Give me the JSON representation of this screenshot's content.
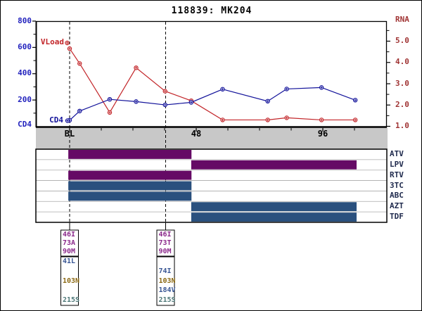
{
  "title": "118839: MK204",
  "colors": {
    "vload": "#C22428",
    "cd4": "#12129A",
    "cd4_axis_text": "#2323BE",
    "rna_axis_text": "#A03434",
    "x_axis_text": "#000000",
    "band": "#C8C8C8",
    "pi_bar": "#650A65",
    "nrti_bar": "#2A507E",
    "med_label": "#1F2A4D",
    "pi_mut": "#8B2A8B",
    "nrti_mut": "#3A5795",
    "nnrti_mut": "#8B6914",
    "other_mut": "#4E7878"
  },
  "chart_data": {
    "type": "line",
    "title": "118839: MK204",
    "x_unit": "weeks",
    "x_ticks_major": [
      {
        "week": 0,
        "label": "BL"
      },
      {
        "week": 48,
        "label": "48"
      },
      {
        "week": 96,
        "label": "96"
      }
    ],
    "x_minor_tick_weeks": [
      12,
      24,
      36,
      60,
      72,
      84,
      108
    ],
    "x_range_weeks": [
      -12.8,
      120.3
    ],
    "left_axis": {
      "label": "CD4",
      "range": [
        0,
        800
      ],
      "major_ticks": [
        200,
        400,
        600,
        800
      ],
      "minor_ticks": [
        100,
        300,
        500,
        700
      ]
    },
    "right_axis": {
      "label": "RNA",
      "range": [
        1.0,
        6.0
      ],
      "major_ticks": [
        1.0,
        2.0,
        3.0,
        4.0,
        5.0
      ],
      "minor_ticks": [
        1.5,
        2.5,
        3.5,
        4.5,
        5.5
      ]
    },
    "resistance_test_weeks": [
      0,
      36.4
    ],
    "series": [
      {
        "name": "VLoad",
        "axis": "right",
        "color_key": "vload",
        "weeks": [
          0,
          3.8,
          15.2,
          25.2,
          36.2,
          46.1,
          58,
          75.1,
          82.3,
          95.5,
          108.3
        ],
        "values": [
          4.65,
          3.95,
          1.65,
          3.75,
          2.65,
          2.2,
          1.3,
          1.3,
          1.4,
          1.3,
          1.3
        ]
      },
      {
        "name": "CD4",
        "axis": "left",
        "color_key": "cd4",
        "weeks": [
          0,
          3.8,
          15.2,
          25.2,
          36.2,
          46.1,
          58,
          75.1,
          82.3,
          95.5,
          108.3
        ],
        "values": [
          46,
          116,
          205,
          188,
          163,
          182,
          282,
          191,
          284,
          295,
          199
        ]
      }
    ]
  },
  "medications": {
    "rows": [
      {
        "name": "ATV",
        "type": "pi",
        "start_week": -0.5,
        "end_week": 46.2
      },
      {
        "name": "LPV",
        "type": "pi",
        "start_week": 46.1,
        "end_week": 108.8
      },
      {
        "name": "RTV",
        "type": "pi",
        "start_week": -0.5,
        "end_week": 46.2
      },
      {
        "name": "3TC",
        "type": "nrti",
        "start_week": -0.5,
        "end_week": 46.2
      },
      {
        "name": "ABC",
        "type": "nrti",
        "start_week": -0.5,
        "end_week": 46.2
      },
      {
        "name": "AZT",
        "type": "nrti",
        "start_week": 46.1,
        "end_week": 108.8
      },
      {
        "name": "TDF",
        "type": "nrti",
        "start_week": 46.1,
        "end_week": 108.8
      }
    ]
  },
  "mutation_tests": [
    {
      "week": 0,
      "protease_mutations": [
        {
          "label": "46I",
          "class": "pi"
        },
        {
          "label": "73A",
          "class": "pi"
        },
        {
          "label": "90M",
          "class": "pi"
        }
      ],
      "rt_mutations": [
        {
          "label": "41L",
          "class": "nrti"
        },
        {
          "label": "",
          "class": "none"
        },
        {
          "label": "103N",
          "class": "nnrti"
        },
        {
          "label": "",
          "class": "none"
        },
        {
          "label": "215S",
          "class": "other"
        }
      ]
    },
    {
      "week": 36.4,
      "protease_mutations": [
        {
          "label": "46I",
          "class": "pi"
        },
        {
          "label": "73T",
          "class": "pi"
        },
        {
          "label": "90M",
          "class": "pi"
        }
      ],
      "rt_mutations": [
        {
          "label": "",
          "class": "none"
        },
        {
          "label": "74I",
          "class": "nrti"
        },
        {
          "label": "103N",
          "class": "nnrti"
        },
        {
          "label": "184V",
          "class": "nrti"
        },
        {
          "label": "215S",
          "class": "other"
        }
      ]
    }
  ]
}
